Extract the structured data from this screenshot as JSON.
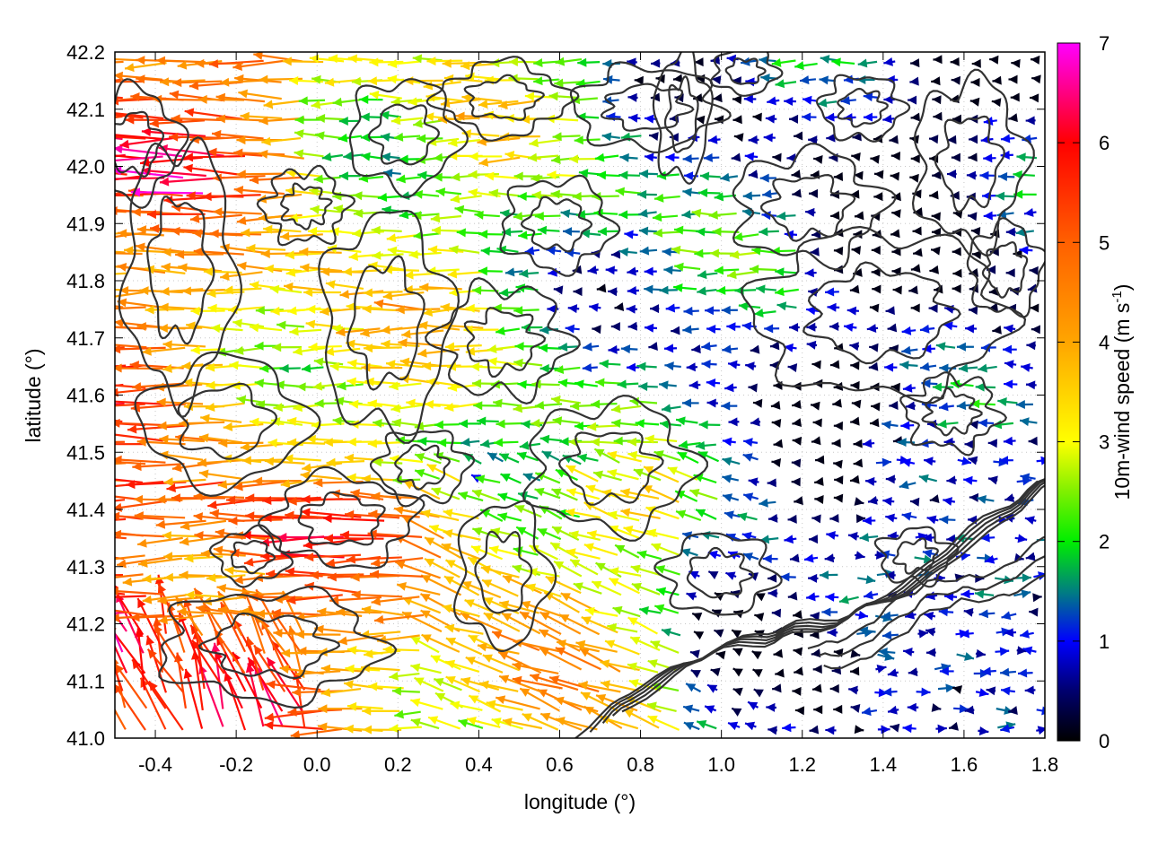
{
  "chart_data": {
    "type": "vector-field",
    "xlabel": "longitude (°)",
    "ylabel": "latitude (°)",
    "colorbar_label": "10m-wind speed (m s",
    "colorbar_label_sup": "-1",
    "colorbar_label_tail": ")",
    "xlim": [
      -0.5,
      1.8
    ],
    "ylim": [
      41.0,
      42.2
    ],
    "xticks": [
      "-0.4",
      "-0.2",
      "0.0",
      "0.2",
      "0.4",
      "0.6",
      "0.8",
      "1.0",
      "1.2",
      "1.4",
      "1.6",
      "1.8"
    ],
    "xtick_values": [
      -0.4,
      -0.2,
      0.0,
      0.2,
      0.4,
      0.6,
      0.8,
      1.0,
      1.2,
      1.4,
      1.6,
      1.8
    ],
    "yticks": [
      "41.0",
      "41.1",
      "41.2",
      "41.3",
      "41.4",
      "41.5",
      "41.6",
      "41.7",
      "41.8",
      "41.9",
      "42.0",
      "42.1",
      "42.2"
    ],
    "ytick_values": [
      41.0,
      41.1,
      41.2,
      41.3,
      41.4,
      41.5,
      41.6,
      41.7,
      41.8,
      41.9,
      42.0,
      42.1,
      42.2
    ],
    "colorbar": {
      "range": [
        0,
        7
      ],
      "ticks": [
        "0",
        "1",
        "2",
        "3",
        "4",
        "5",
        "6",
        "7"
      ],
      "tick_values": [
        0,
        1,
        2,
        3,
        4,
        5,
        6,
        7
      ],
      "colors": [
        {
          "v": 0,
          "c": "#000000"
        },
        {
          "v": 0.5,
          "c": "#00006e"
        },
        {
          "v": 1,
          "c": "#0000ff"
        },
        {
          "v": 1.5,
          "c": "#007f80"
        },
        {
          "v": 2,
          "c": "#00ee00"
        },
        {
          "v": 2.5,
          "c": "#7ff000"
        },
        {
          "v": 3,
          "c": "#ffff00"
        },
        {
          "v": 4,
          "c": "#ffa500"
        },
        {
          "v": 5,
          "c": "#ff6000"
        },
        {
          "v": 6,
          "c": "#ff0000"
        },
        {
          "v": 6.5,
          "c": "#ff0080"
        },
        {
          "v": 7,
          "c": "#ff00ff"
        }
      ]
    },
    "grid": true,
    "field_description": "westward wind arrows, strongest (5-7 m/s) in the west and south-west, weak (0-1.5 m/s) in the east; contour lines of terrain overlaid",
    "contour_color": "#333333"
  }
}
